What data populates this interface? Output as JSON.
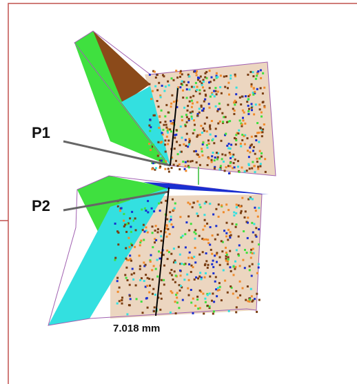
{
  "labels": {
    "p1": "P1",
    "p2": "P2",
    "distance": "7.018 mm"
  }
}
